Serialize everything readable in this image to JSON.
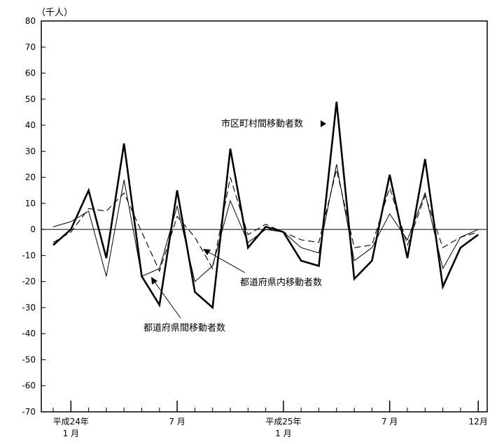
{
  "chart_data": {
    "type": "line",
    "unit_label": "（千人）",
    "ylim": [
      -70,
      80
    ],
    "yticks": [
      80,
      70,
      60,
      50,
      40,
      30,
      20,
      10,
      0,
      -10,
      -20,
      -30,
      -40,
      -50,
      -60,
      -70
    ],
    "x_labels": [
      {
        "index": 1,
        "line1": "平成24年",
        "line2": "1 月"
      },
      {
        "index": 7,
        "line1": "7 月",
        "line2": ""
      },
      {
        "index": 13,
        "line1": "平成25年",
        "line2": "1 月"
      },
      {
        "index": 19,
        "line1": "7 月",
        "line2": ""
      },
      {
        "index": 24,
        "line1": "12月",
        "line2": ""
      }
    ],
    "grid": false,
    "series": [
      {
        "name": "市区町村間移動者数",
        "style": "bold",
        "values": [
          -6,
          0,
          15,
          -11,
          33,
          -18,
          -29,
          15,
          -24,
          -30,
          31,
          -7,
          1,
          -1,
          -12,
          -14,
          49,
          -19,
          -12,
          21,
          -11,
          27,
          -22,
          -7,
          -2
        ]
      },
      {
        "name": "都道府県間移動者数",
        "style": "thin",
        "values": [
          1,
          3,
          7,
          -18,
          19,
          -18,
          -15,
          9,
          -20,
          -14,
          11,
          -5,
          0,
          -1,
          -7,
          -9,
          25,
          -12,
          -7,
          6,
          -4,
          14,
          -15,
          -3,
          0
        ]
      },
      {
        "name": "都道府県内移動者数",
        "style": "dashed",
        "values": [
          -5,
          -1,
          8,
          7,
          14,
          -1,
          -16,
          5,
          -3,
          -15,
          20,
          -2,
          2,
          -1,
          -4,
          -5,
          23,
          -7,
          -6,
          16,
          -6,
          13,
          -7,
          -3,
          -1
        ]
      }
    ],
    "annotations": [
      {
        "text": "市区町村間移動者数",
        "series": "市区町村間移動者数"
      },
      {
        "text": "都道府県内移動者数",
        "series": "都道府県内移動者数"
      },
      {
        "text": "都道府県間移動者数",
        "series": "都道府県間移動者数"
      }
    ]
  }
}
